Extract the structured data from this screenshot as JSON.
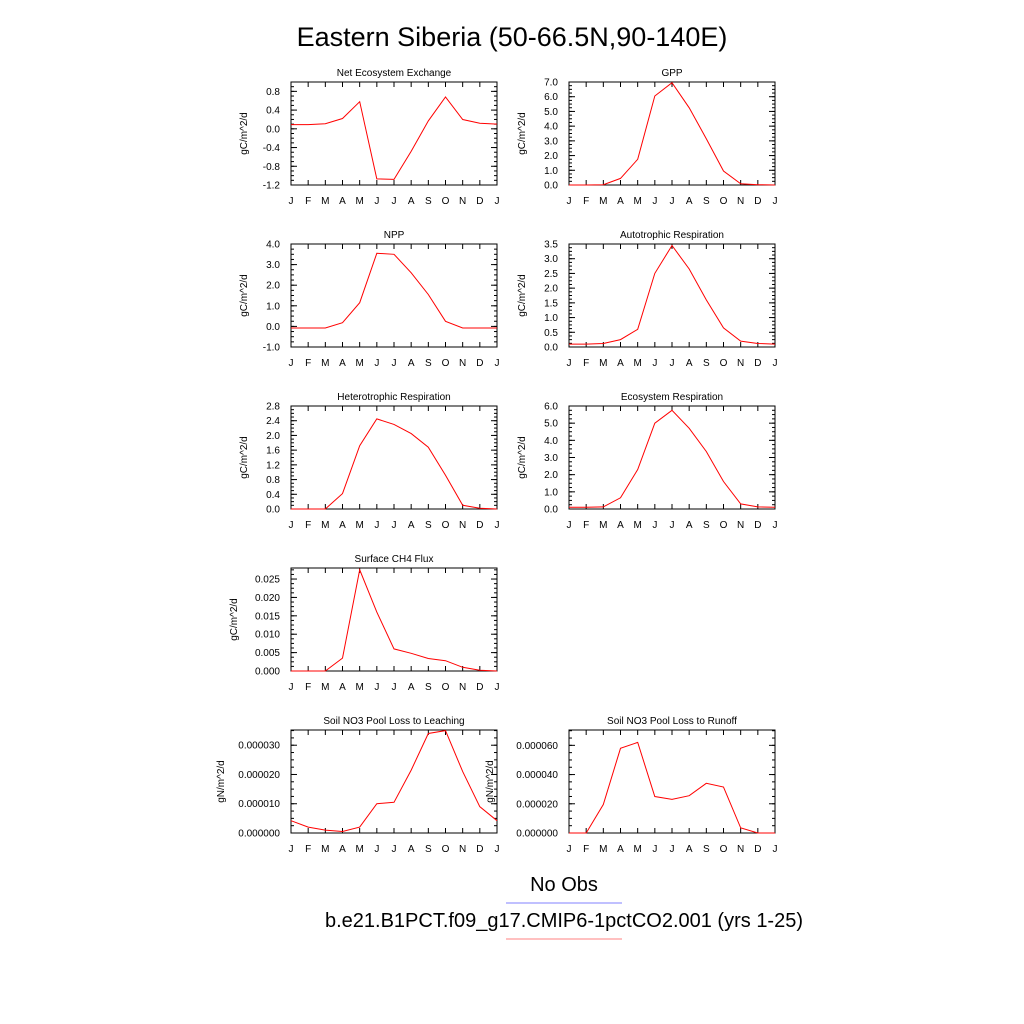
{
  "title": "Eastern Siberia (50-66.5N,90-140E)",
  "month_labels": [
    "J",
    "F",
    "M",
    "A",
    "M",
    "J",
    "J",
    "A",
    "S",
    "O",
    "N",
    "D",
    "J"
  ],
  "legend": [
    {
      "label": "No Obs",
      "color": "#8080ff"
    },
    {
      "label": "b.e21.B1PCT.f09_g17.CMIP6-1pctCO2.001 (yrs 1-25)",
      "color": "#ff8080"
    }
  ],
  "line_color": "#ff0000",
  "chart_data": [
    {
      "type": "line",
      "title": "Net Ecosystem Exchange",
      "ylabel": "gC/m^2/d",
      "ylim": [
        -1.2,
        1.0
      ],
      "yticks": [
        -1.2,
        -0.8,
        -0.4,
        0.0,
        0.4,
        0.8
      ],
      "ytick_labels": [
        "-1.2",
        "-0.8",
        "-0.4",
        "0.0",
        "0.4",
        "0.8"
      ],
      "values": [
        0.09,
        0.09,
        0.11,
        0.22,
        0.58,
        -1.07,
        -1.08,
        -0.48,
        0.17,
        0.68,
        0.2,
        0.12,
        0.1
      ]
    },
    {
      "type": "line",
      "title": "GPP",
      "ylabel": "gC/m^2/d",
      "ylim": [
        0.0,
        7.0
      ],
      "yticks": [
        0.0,
        1.0,
        2.0,
        3.0,
        4.0,
        5.0,
        6.0,
        7.0
      ],
      "ytick_labels": [
        "0.0",
        "1.0",
        "2.0",
        "3.0",
        "4.0",
        "5.0",
        "6.0",
        "7.0"
      ],
      "values": [
        0.0,
        0.0,
        0.02,
        0.45,
        1.75,
        6.05,
        6.95,
        5.25,
        3.15,
        0.95,
        0.08,
        0.02,
        0.0
      ]
    },
    {
      "type": "line",
      "title": "NPP",
      "ylabel": "gC/m^2/d",
      "ylim": [
        -1.0,
        4.0
      ],
      "yticks": [
        -1.0,
        0.0,
        1.0,
        2.0,
        3.0,
        4.0
      ],
      "ytick_labels": [
        "-1.0",
        "0.0",
        "1.0",
        "2.0",
        "3.0",
        "4.0"
      ],
      "values": [
        -0.08,
        -0.08,
        -0.08,
        0.18,
        1.15,
        3.55,
        3.5,
        2.6,
        1.55,
        0.25,
        -0.08,
        -0.08,
        -0.08
      ]
    },
    {
      "type": "line",
      "title": "Autotrophic Respiration",
      "ylabel": "gC/m^2/d",
      "ylim": [
        0.0,
        3.5
      ],
      "yticks": [
        0.0,
        0.5,
        1.0,
        1.5,
        2.0,
        2.5,
        3.0,
        3.5
      ],
      "ytick_labels": [
        "0.0",
        "0.5",
        "1.0",
        "1.5",
        "2.0",
        "2.5",
        "3.0",
        "3.5"
      ],
      "values": [
        0.1,
        0.1,
        0.12,
        0.25,
        0.6,
        2.5,
        3.45,
        2.65,
        1.6,
        0.65,
        0.2,
        0.12,
        0.1
      ]
    },
    {
      "type": "line",
      "title": "Heterotrophic Respiration",
      "ylabel": "gC/m^2/d",
      "ylim": [
        0.0,
        2.8
      ],
      "yticks": [
        0.0,
        0.4,
        0.8,
        1.2,
        1.6,
        2.0,
        2.4,
        2.8
      ],
      "ytick_labels": [
        "0.0",
        "0.4",
        "0.8",
        "1.2",
        "1.6",
        "2.0",
        "2.4",
        "2.8"
      ],
      "values": [
        0.0,
        0.0,
        0.0,
        0.42,
        1.72,
        2.45,
        2.3,
        2.05,
        1.68,
        0.92,
        0.1,
        0.02,
        0.0
      ]
    },
    {
      "type": "line",
      "title": "Ecosystem Respiration",
      "ylabel": "gC/m^2/d",
      "ylim": [
        0.0,
        6.0
      ],
      "yticks": [
        0.0,
        1.0,
        2.0,
        3.0,
        4.0,
        5.0,
        6.0
      ],
      "ytick_labels": [
        "0.0",
        "1.0",
        "2.0",
        "3.0",
        "4.0",
        "5.0",
        "6.0"
      ],
      "values": [
        0.1,
        0.1,
        0.12,
        0.65,
        2.3,
        5.0,
        5.75,
        4.7,
        3.35,
        1.6,
        0.3,
        0.12,
        0.1
      ]
    },
    {
      "type": "line",
      "title": "Surface CH4 Flux",
      "ylabel": "gC/m^2/d",
      "ylim": [
        0.0,
        0.028
      ],
      "yticks": [
        0.0,
        0.005,
        0.01,
        0.015,
        0.02,
        0.025
      ],
      "ytick_labels": [
        "0.000",
        "0.005",
        "0.010",
        "0.015",
        "0.020",
        "0.025"
      ],
      "values": [
        0.0,
        0.0,
        0.0,
        0.0035,
        0.0275,
        0.016,
        0.006,
        0.0048,
        0.0034,
        0.0028,
        0.001,
        0.0002,
        0.0
      ]
    },
    {
      "type": "line",
      "title": "Soil NO3 Pool Loss to Leaching",
      "ylabel": "gN/m^2/d",
      "ylim": [
        0.0,
        3.52e-05
      ],
      "yticks": [
        0.0,
        1e-05,
        2e-05,
        3e-05
      ],
      "ytick_labels": [
        "0.000000",
        "0.000010",
        "0.000020",
        "0.000030"
      ],
      "values": [
        4.2e-06,
        2e-06,
        1e-06,
        5e-07,
        2e-06,
        1e-05,
        1.05e-05,
        2.15e-05,
        3.4e-05,
        3.5e-05,
        2.1e-05,
        9e-06,
        4.2e-06
      ]
    },
    {
      "type": "line",
      "title": "Soil NO3 Pool Loss to Runoff",
      "ylabel": "gN/m^2/d",
      "ylim": [
        0.0,
        7.05e-05
      ],
      "yticks": [
        0.0,
        2e-05,
        4e-05,
        6e-05
      ],
      "ytick_labels": [
        "0.000000",
        "0.000020",
        "0.000040",
        "0.000060"
      ],
      "values": [
        0.0,
        0.0,
        1.95e-05,
        5.8e-05,
        6.2e-05,
        2.5e-05,
        2.3e-05,
        2.55e-05,
        3.4e-05,
        3.15e-05,
        3.5e-06,
        0.0,
        0.0
      ]
    }
  ]
}
